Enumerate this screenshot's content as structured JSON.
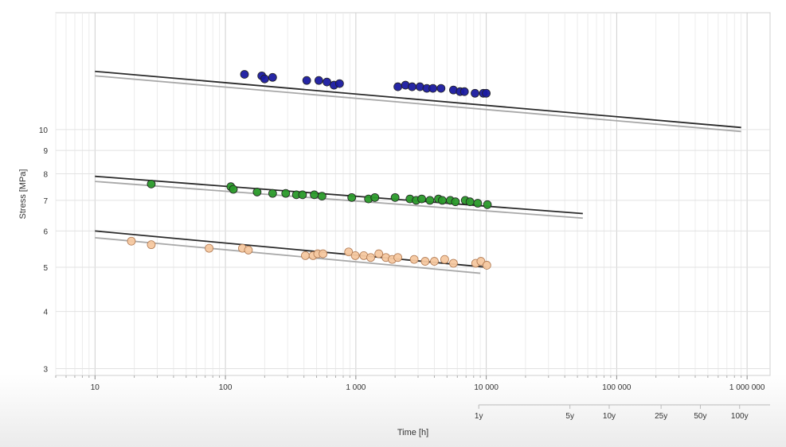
{
  "chart_data": {
    "type": "scatter",
    "x_scale": "log",
    "y_scale": "log",
    "xlim": [
      5,
      1500000
    ],
    "ylim": [
      2.9,
      18
    ],
    "xlabel": "Time [h]",
    "ylabel": "Stress [MPa]",
    "grid": true,
    "x_ticks": [
      {
        "value": 10,
        "label": "10"
      },
      {
        "value": 100,
        "label": "100"
      },
      {
        "value": 1000,
        "label": "1 000"
      },
      {
        "value": 10000,
        "label": "10 000"
      },
      {
        "value": 100000,
        "label": "100 000"
      },
      {
        "value": 1000000,
        "label": "1 000 000"
      }
    ],
    "y_ticks": [
      {
        "value": 3,
        "label": "3"
      },
      {
        "value": 4,
        "label": "4"
      },
      {
        "value": 5,
        "label": "5"
      },
      {
        "value": 6,
        "label": "6"
      },
      {
        "value": 7,
        "label": "7"
      },
      {
        "value": 8,
        "label": "8"
      },
      {
        "value": 9,
        "label": "9"
      },
      {
        "value": 10,
        "label": "10"
      }
    ],
    "secondary_x_axis": [
      {
        "value": 8760,
        "label": "1y"
      },
      {
        "value": 43800,
        "label": "5y"
      },
      {
        "value": 87600,
        "label": "10y"
      },
      {
        "value": 219000,
        "label": "25y"
      },
      {
        "value": 438000,
        "label": "50y"
      },
      {
        "value": 876000,
        "label": "100y"
      }
    ],
    "series": [
      {
        "color": "#1a1aa0",
        "fit_line": {
          "x": [
            10,
            900000
          ],
          "y": [
            13.4,
            10.1
          ]
        },
        "lower_line": {
          "x": [
            10,
            900000
          ],
          "y": [
            13.1,
            9.9
          ]
        },
        "points": [
          [
            140,
            13.2
          ],
          [
            190,
            13.1
          ],
          [
            200,
            12.9
          ],
          [
            230,
            13.0
          ],
          [
            420,
            12.8
          ],
          [
            520,
            12.8
          ],
          [
            600,
            12.7
          ],
          [
            680,
            12.5
          ],
          [
            750,
            12.6
          ],
          [
            2100,
            12.4
          ],
          [
            2400,
            12.5
          ],
          [
            2700,
            12.4
          ],
          [
            3100,
            12.4
          ],
          [
            3500,
            12.3
          ],
          [
            3900,
            12.3
          ],
          [
            4500,
            12.3
          ],
          [
            5600,
            12.2
          ],
          [
            6300,
            12.1
          ],
          [
            6800,
            12.1
          ],
          [
            8200,
            12.0
          ],
          [
            9500,
            12.0
          ],
          [
            10000,
            12.0
          ]
        ]
      },
      {
        "color": "#2a9a2a",
        "fit_line": {
          "x": [
            10,
            55000
          ],
          "y": [
            7.9,
            6.55
          ]
        },
        "lower_line": {
          "x": [
            10,
            55000
          ],
          "y": [
            7.7,
            6.4
          ]
        },
        "points": [
          [
            27,
            7.6
          ],
          [
            110,
            7.5
          ],
          [
            115,
            7.4
          ],
          [
            175,
            7.3
          ],
          [
            230,
            7.25
          ],
          [
            290,
            7.25
          ],
          [
            350,
            7.2
          ],
          [
            390,
            7.2
          ],
          [
            480,
            7.2
          ],
          [
            550,
            7.15
          ],
          [
            930,
            7.1
          ],
          [
            1250,
            7.05
          ],
          [
            1400,
            7.1
          ],
          [
            2000,
            7.1
          ],
          [
            2600,
            7.05
          ],
          [
            2900,
            7.0
          ],
          [
            3200,
            7.05
          ],
          [
            3700,
            7.0
          ],
          [
            4300,
            7.05
          ],
          [
            4600,
            7.0
          ],
          [
            5300,
            7.0
          ],
          [
            5800,
            6.95
          ],
          [
            6900,
            7.0
          ],
          [
            7500,
            6.95
          ],
          [
            8600,
            6.9
          ],
          [
            10200,
            6.85
          ]
        ]
      },
      {
        "color": "#f5c8a0",
        "fit_line": {
          "x": [
            10,
            10000
          ],
          "y": [
            6.0,
            5.0
          ]
        },
        "lower_line": {
          "x": [
            10,
            9000
          ],
          "y": [
            5.8,
            4.85
          ]
        },
        "points": [
          [
            19,
            5.7
          ],
          [
            27,
            5.6
          ],
          [
            75,
            5.5
          ],
          [
            135,
            5.5
          ],
          [
            150,
            5.45
          ],
          [
            410,
            5.3
          ],
          [
            470,
            5.3
          ],
          [
            510,
            5.35
          ],
          [
            560,
            5.35
          ],
          [
            880,
            5.4
          ],
          [
            990,
            5.3
          ],
          [
            1150,
            5.3
          ],
          [
            1300,
            5.25
          ],
          [
            1500,
            5.35
          ],
          [
            1700,
            5.25
          ],
          [
            1900,
            5.2
          ],
          [
            2100,
            5.25
          ],
          [
            2800,
            5.2
          ],
          [
            3400,
            5.15
          ],
          [
            4000,
            5.15
          ],
          [
            4800,
            5.2
          ],
          [
            5600,
            5.1
          ],
          [
            8300,
            5.1
          ],
          [
            9100,
            5.15
          ],
          [
            10100,
            5.05
          ]
        ]
      }
    ]
  }
}
